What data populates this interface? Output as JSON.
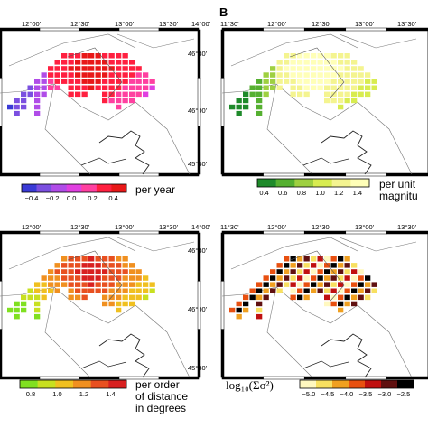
{
  "panels": [
    {
      "id": "A",
      "letter": "",
      "lon_labels": [
        "12°00'",
        "12°30'",
        "13°00'",
        "13°30'",
        "14°00'"
      ],
      "lat_labels": [
        "46°30'",
        "46°00'",
        "45°30'"
      ],
      "colorbar": {
        "label": "per year",
        "ticks": [
          "−0.4",
          "−0.2",
          "0.0",
          "0.2",
          "0.4"
        ],
        "colors": [
          "#3a3ad6",
          "#7b4fe0",
          "#b04ce8",
          "#e040e0",
          "#ff40a0",
          "#ff2040",
          "#e81818"
        ]
      }
    },
    {
      "id": "B",
      "letter": "B",
      "lon_labels": [
        "11°30'",
        "12°00'",
        "12°30'",
        "13°00'",
        "13°30'"
      ],
      "lat_labels": [
        "46°30'",
        "46°00'",
        "45°30'"
      ],
      "colorbar": {
        "label": "per unit\nmagnitu",
        "ticks": [
          "0.4",
          "0.6",
          "0.8",
          "1.0",
          "1.2",
          "1.4"
        ],
        "colors": [
          "#1e8a2a",
          "#55b030",
          "#9ed040",
          "#d8ec50",
          "#f4f490",
          "#ffffb8"
        ]
      }
    },
    {
      "id": "C",
      "letter": "",
      "lon_labels": [
        "12°00'",
        "12°30'",
        "13°00'",
        "13°30'",
        "14°00'"
      ],
      "lat_labels": [
        "46°30'",
        "46°00'",
        "45°30'"
      ],
      "colorbar": {
        "label": "per order\nof distance\nin degrees",
        "ticks": [
          "0.8",
          "1.0",
          "1.2",
          "1.4"
        ],
        "colors": [
          "#80e020",
          "#c8e020",
          "#f0c020",
          "#f09020",
          "#e85020",
          "#d82020"
        ]
      }
    },
    {
      "id": "D",
      "letter": "",
      "lon_labels": [
        "11°30'",
        "12°00'",
        "12°30'",
        "13°00'",
        "13°30'"
      ],
      "lat_labels": [
        "46°30'",
        "46°00'",
        "45°30'"
      ],
      "colorbar": {
        "label": "log₁₀(Σσ²)",
        "ticks": [
          "−5.0",
          "−4.5",
          "−4.0",
          "−3.5",
          "−3.0",
          "−2.5"
        ],
        "colors": [
          "#fff8c0",
          "#f8e060",
          "#f0a020",
          "#e85010",
          "#c01010",
          "#601010",
          "#000000"
        ]
      }
    }
  ]
}
